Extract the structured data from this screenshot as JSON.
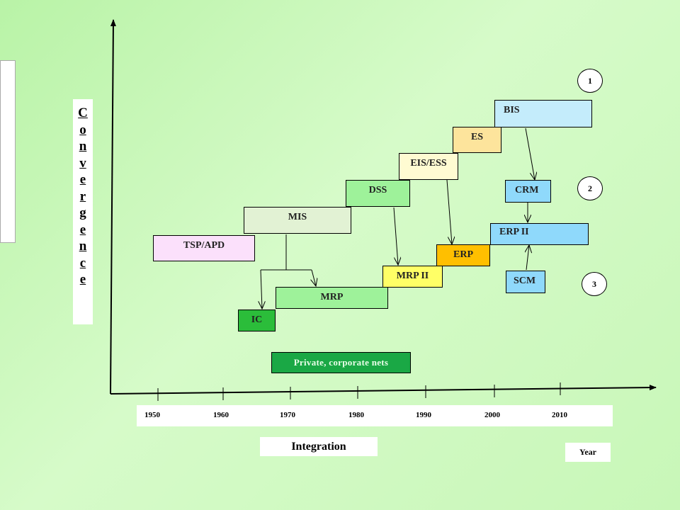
{
  "y_axis_label_letters": [
    "C",
    "o",
    "n",
    "v",
    "e",
    "r",
    "g",
    "e",
    "n",
    "c",
    "e"
  ],
  "x_axis_years": [
    "1950",
    "1960",
    "1970",
    "1980",
    "1990",
    "2000",
    "2010"
  ],
  "x_axis_label": "Integration",
  "year_label": "Year",
  "boxes": {
    "tsp_apd": "TSP/APD",
    "mis": "MIS",
    "dss": "DSS",
    "eis_ess": "EIS/ESS",
    "es": "ES",
    "bis": "BIS",
    "crm": "CRM",
    "erp_ii": "ERP II",
    "erp": "ERP",
    "mrp_ii": "MRP II",
    "scm": "SCM",
    "mrp": "MRP",
    "ic": "IC",
    "private_nets": "Private, corporate nets"
  },
  "circles": {
    "one": "1",
    "two": "2",
    "three": "3"
  },
  "colors": {
    "tsp_apd": "#fbe0fb",
    "mis": "#e2f2d4",
    "dss": "#9ef29a",
    "eis_ess": "#fffbd2",
    "es": "#fde49c",
    "bis": "#c4ecfb",
    "crm": "#8fd9fb",
    "erp_ii": "#8fd9fb",
    "erp": "#ffbf00",
    "mrp_ii": "#ffff66",
    "scm": "#8fd9fb",
    "mrp": "#9ef29a",
    "ic": "#2bbd3a",
    "private_nets": "#1aa845"
  }
}
